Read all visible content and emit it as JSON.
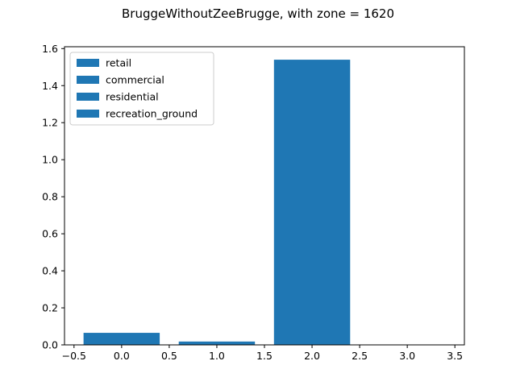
{
  "chart_data": {
    "type": "bar",
    "title": "BruggeWithoutZeeBrugge, with zone = 1620",
    "xlabel": "",
    "ylabel": "",
    "x": [
      0,
      1,
      2,
      3
    ],
    "values": [
      0.065,
      0.018,
      1.54,
      0.0
    ],
    "bar_width": 0.8,
    "xlim": [
      -0.6,
      3.6
    ],
    "ylim": [
      0,
      1.61
    ],
    "xticks": [
      -0.5,
      0.0,
      0.5,
      1.0,
      1.5,
      2.0,
      2.5,
      3.0,
      3.5
    ],
    "xtick_labels": [
      "−0.5",
      "0.0",
      "0.5",
      "1.0",
      "1.5",
      "2.0",
      "2.5",
      "3.0",
      "3.5"
    ],
    "yticks": [
      0.0,
      0.2,
      0.4,
      0.6,
      0.8,
      1.0,
      1.2,
      1.4,
      1.6
    ],
    "ytick_labels": [
      "0.0",
      "0.2",
      "0.4",
      "0.6",
      "0.8",
      "1.0",
      "1.2",
      "1.4",
      "1.6"
    ],
    "legend": [
      "retail",
      "commercial",
      "residential",
      "recreation_ground"
    ],
    "legend_position": "upper-left",
    "bar_color": "#1f77b4",
    "grid": false
  }
}
